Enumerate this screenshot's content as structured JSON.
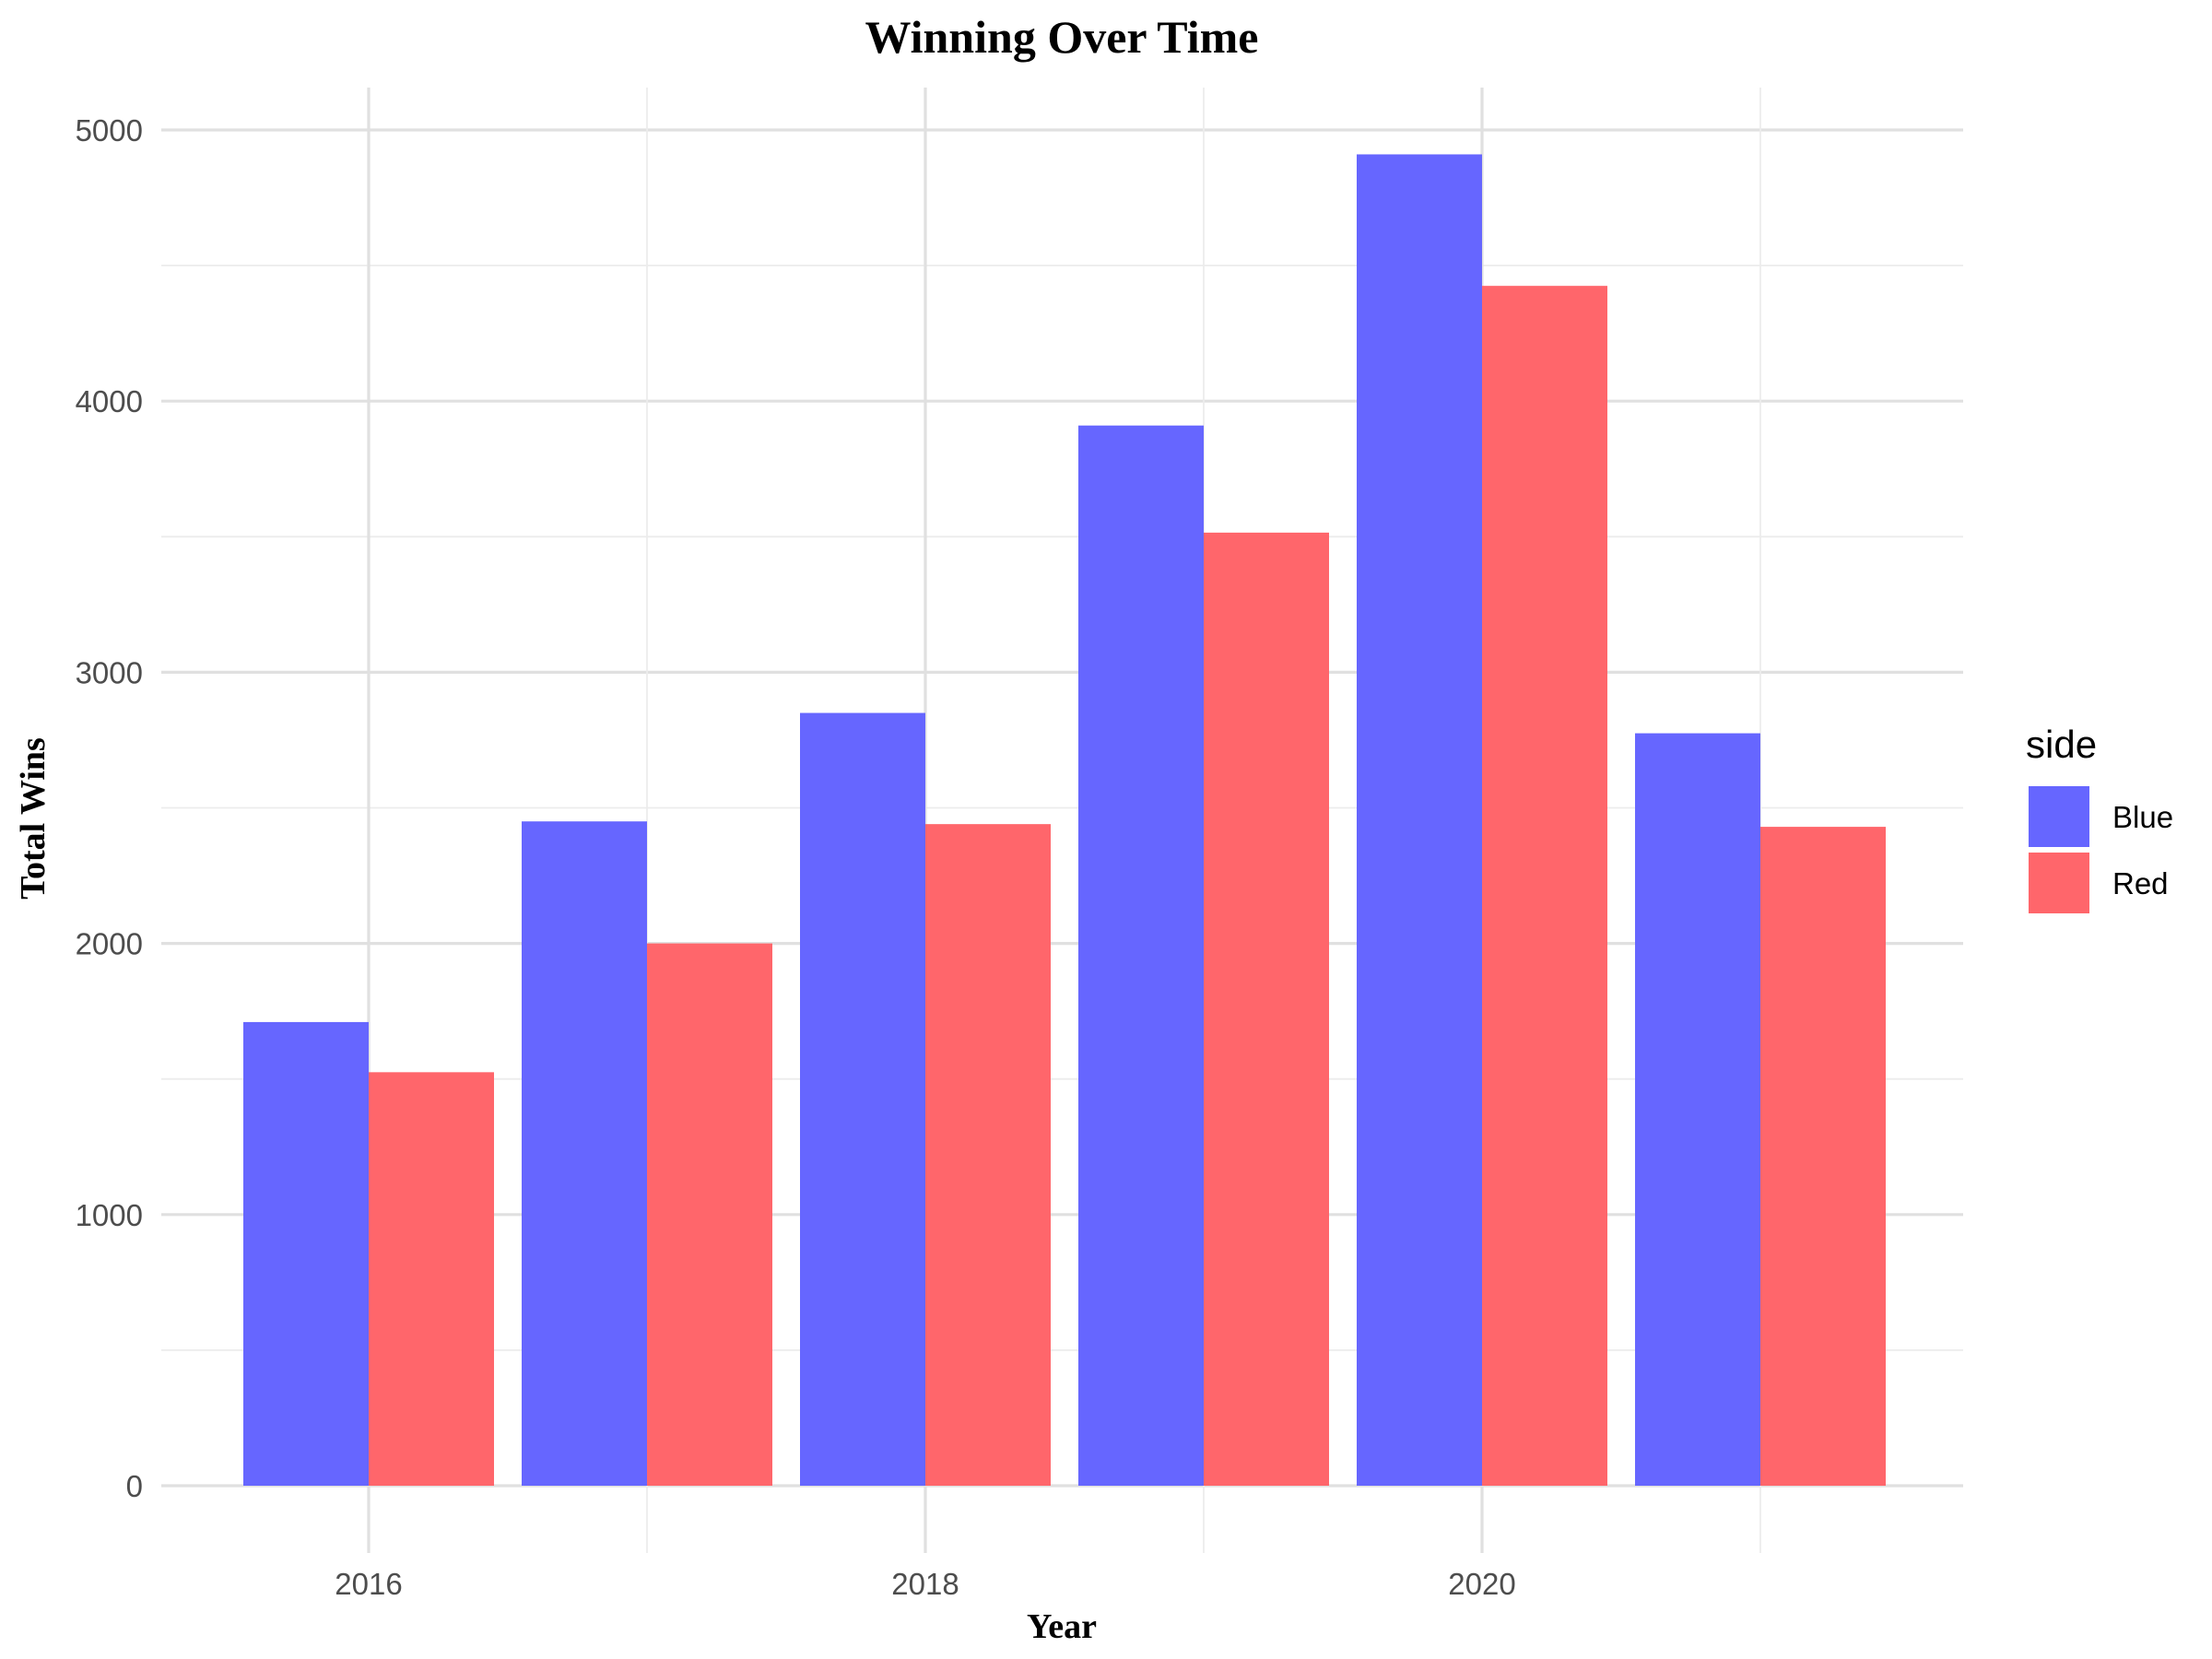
{
  "chart_data": {
    "type": "bar",
    "title": "Winning Over Time",
    "xlabel": "Year",
    "ylabel": "Total Wins",
    "x": [
      2016,
      2017,
      2018,
      2019,
      2020,
      2021
    ],
    "x_ticks": [
      "2016",
      "2018",
      "2020"
    ],
    "y_ticks": [
      "0",
      "1000",
      "2000",
      "3000",
      "4000",
      "5000"
    ],
    "ylim": [
      0,
      5000
    ],
    "grid": true,
    "legend": {
      "title": "side",
      "position": "right"
    },
    "series": [
      {
        "name": "Blue",
        "color": "#6666ff",
        "values": [
          1710,
          2450,
          2850,
          3910,
          4910,
          2775
        ]
      },
      {
        "name": "Red",
        "color": "#ff666b",
        "values": [
          1525,
          2000,
          2440,
          3515,
          4425,
          2430
        ]
      }
    ]
  }
}
